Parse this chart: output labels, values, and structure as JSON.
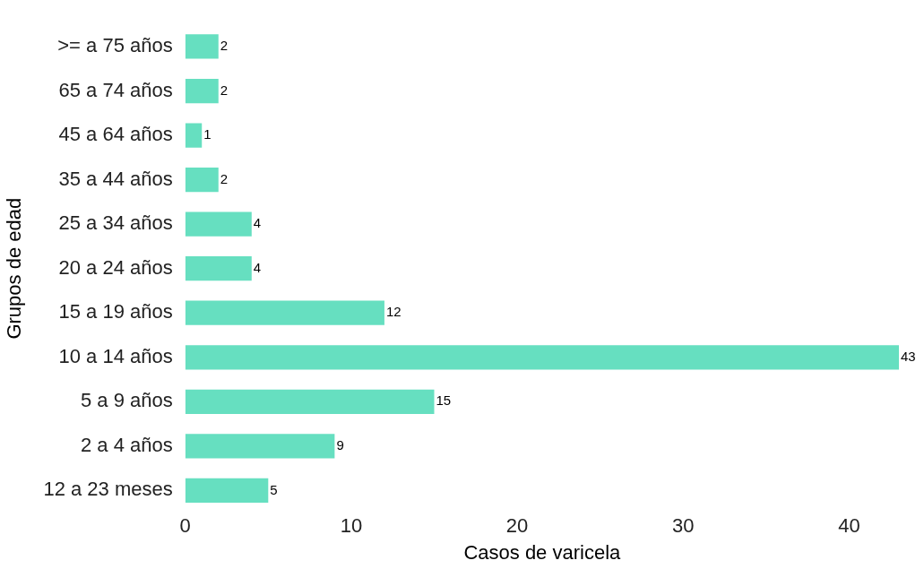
{
  "chart_data": {
    "type": "bar",
    "orientation": "horizontal",
    "xlabel": "Casos de varicela",
    "ylabel": "Grupos de edad",
    "categories": [
      ">= a 75 años",
      "65 a 74 años",
      "45 a 64 años",
      "35 a 44 años",
      "25 a 34 años",
      "20 a 24 años",
      "15 a 19 años",
      "10 a 14 años",
      "5 a 9 años",
      "2 a 4 años",
      "12 a 23 meses"
    ],
    "values": [
      2,
      2,
      1,
      2,
      4,
      4,
      12,
      43,
      15,
      9,
      5
    ],
    "color": "#66dfc0",
    "xlim": [
      0,
      43
    ],
    "xticks": [
      0,
      10,
      20,
      30,
      40
    ],
    "grid": false,
    "legend": false,
    "data_labels": true
  }
}
